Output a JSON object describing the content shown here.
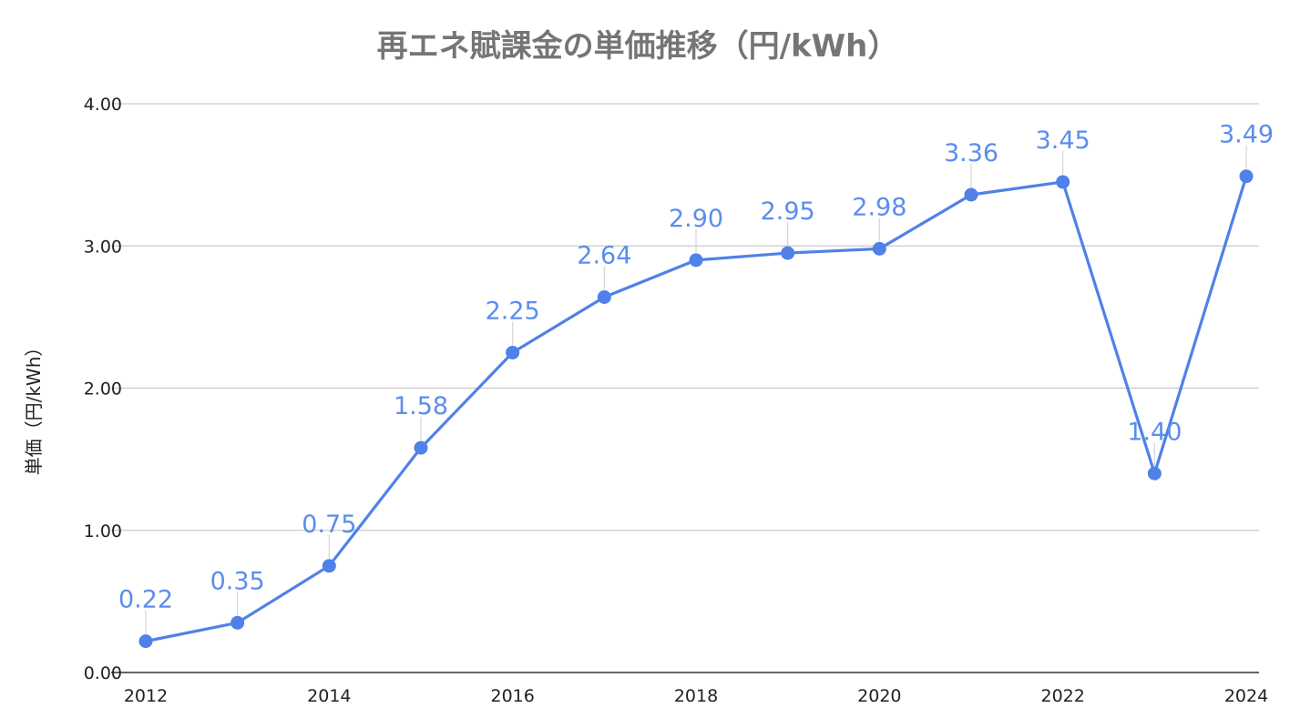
{
  "chart_data": {
    "type": "line",
    "title": "再エネ賦課金の単価推移（円/kWh）",
    "xlabel": "",
    "ylabel": "単価（円/kWh）",
    "ylim": [
      0,
      4
    ],
    "y_ticks": [
      "0.00",
      "1.00",
      "2.00",
      "3.00",
      "4.00"
    ],
    "x_ticks": [
      "2012",
      "2014",
      "2016",
      "2018",
      "2020",
      "2022",
      "2024"
    ],
    "x_tick_values": [
      2012,
      2014,
      2016,
      2018,
      2020,
      2022,
      2024
    ],
    "grid": true,
    "legend": "none",
    "series": [
      {
        "color": "#4f81e8",
        "x": [
          2012,
          2013,
          2014,
          2015,
          2016,
          2017,
          2018,
          2019,
          2020,
          2021,
          2022,
          2023,
          2024
        ],
        "values": [
          0.22,
          0.35,
          0.75,
          1.58,
          2.25,
          2.64,
          2.9,
          2.95,
          2.98,
          3.36,
          3.45,
          1.4,
          3.49
        ],
        "labels": [
          "0.22",
          "0.35",
          "0.75",
          "1.58",
          "2.25",
          "2.64",
          "2.90",
          "2.95",
          "2.98",
          "3.36",
          "3.45",
          "1.40",
          "3.49"
        ]
      }
    ]
  }
}
